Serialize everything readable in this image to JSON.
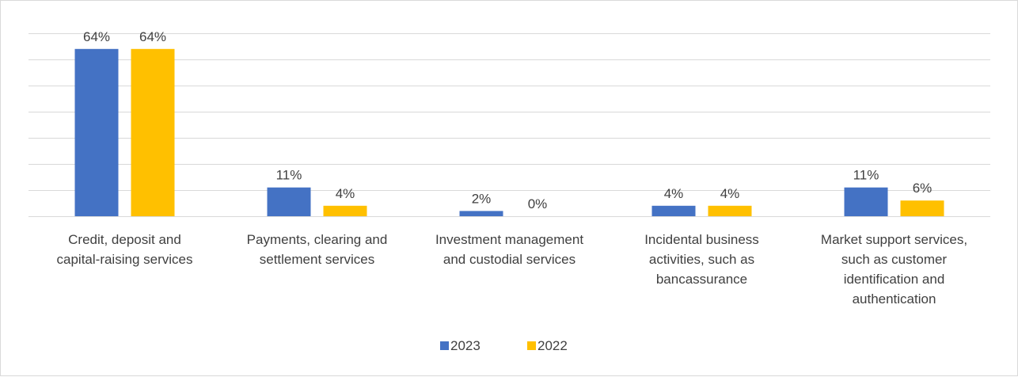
{
  "chart_data": {
    "type": "bar",
    "title": "",
    "xlabel": "",
    "ylabel": "",
    "ylim": [
      0,
      70
    ],
    "grid": true,
    "legend_position": "bottom",
    "categories": [
      [
        "Credit, deposit and",
        "capital-raising services"
      ],
      [
        "Payments, clearing and",
        "settlement services"
      ],
      [
        "Investment management",
        "and custodial services"
      ],
      [
        "Incidental business",
        "activities, such as",
        "bancassurance"
      ],
      [
        "Market support services,",
        "such as customer",
        "identification and",
        "authentication"
      ]
    ],
    "series": [
      {
        "name": "2023",
        "color": "#4472c4",
        "values": [
          64,
          11,
          2,
          4,
          11
        ],
        "labels": [
          "64%",
          "11%",
          "2%",
          "4%",
          "11%"
        ]
      },
      {
        "name": "2022",
        "color": "#ffc000",
        "values": [
          64,
          4,
          0,
          4,
          6
        ],
        "labels": [
          "64%",
          "4%",
          "0%",
          "4%",
          "6%"
        ]
      }
    ]
  }
}
